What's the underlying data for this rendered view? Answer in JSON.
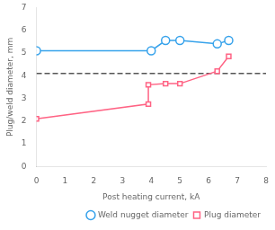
{
  "chart_data": {
    "type": "line",
    "xlabel": "Post heating current, kA",
    "ylabel": "Plug/weld diameter, mm",
    "series": [
      {
        "name": "Weld nugget diameter",
        "x": [
          0,
          4,
          4.5,
          5,
          6.3,
          6.7
        ],
        "values": [
          5.1,
          5.1,
          5.55,
          5.55,
          5.4,
          5.55
        ],
        "marker": "circle"
      },
      {
        "name": "Plug diameter",
        "x": [
          0,
          3.9,
          3.9,
          4.5,
          5,
          6.3,
          6.7
        ],
        "values": [
          2.1,
          2.75,
          3.6,
          3.65,
          3.65,
          4.2,
          4.85
        ],
        "marker": "square"
      }
    ],
    "reference_lines": [
      {
        "y": 4.1,
        "line_style": "dashed"
      }
    ],
    "xlim": [
      0,
      8
    ],
    "xticks": [
      0,
      1,
      2,
      3,
      4,
      5,
      6,
      7,
      8
    ],
    "ylim": [
      0,
      7
    ],
    "yticks": [
      0,
      1,
      2,
      3,
      4,
      5,
      6,
      7
    ],
    "grid": false,
    "legend": "lower right"
  }
}
